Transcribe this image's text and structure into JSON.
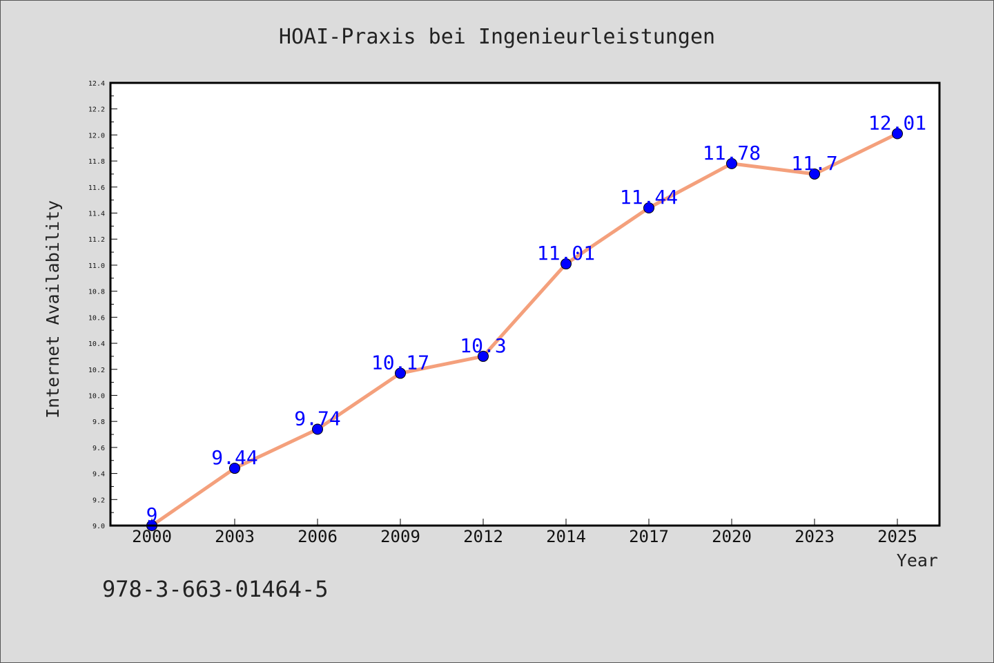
{
  "chart_data": {
    "type": "line",
    "title": "HOAI-Praxis bei Ingenieurleistungen",
    "xlabel": "Year",
    "ylabel": "Internet Availability",
    "categories": [
      "2000",
      "2003",
      "2006",
      "2009",
      "2012",
      "2014",
      "2017",
      "2020",
      "2023",
      "2025"
    ],
    "series": [
      {
        "values": [
          9.0,
          9.44,
          9.74,
          10.17,
          10.3,
          11.01,
          11.44,
          11.78,
          11.7,
          12.01
        ],
        "value_labels": [
          "9",
          "9.44",
          "9.74",
          "10.17",
          "10.3",
          "11.01",
          "11.44",
          "11.78",
          "11.7",
          "12.01"
        ]
      }
    ],
    "ylim": [
      9.0,
      12.4
    ],
    "yticks": [
      "9.0",
      "9.2",
      "9.4",
      "9.6",
      "9.8",
      "10.0",
      "10.2",
      "10.4",
      "10.6",
      "10.8",
      "11.0",
      "11.2",
      "11.4",
      "11.6",
      "11.8",
      "12.0",
      "12.2",
      "12.4"
    ],
    "grid": false,
    "legend": "none"
  },
  "footnote": "978-3-663-01464-5",
  "colors": {
    "line": "#f4a07c",
    "marker": "#0000ff",
    "data_label": "#0000ff",
    "background": "#dcdcdc",
    "plot_background": "#ffffff"
  }
}
